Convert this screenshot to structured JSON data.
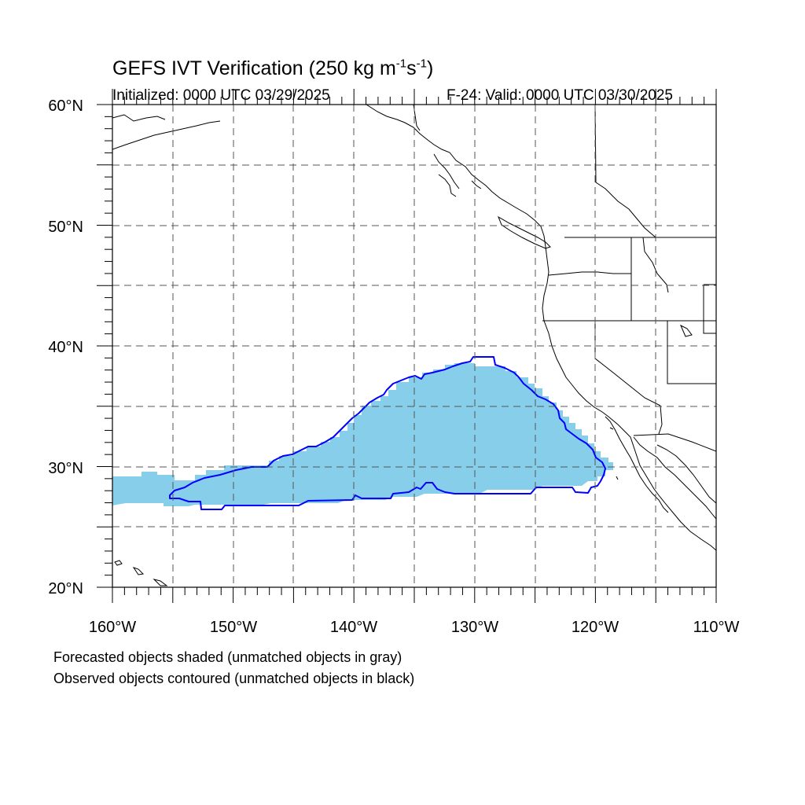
{
  "title": {
    "main": "GEFS IVT Verification (250 kg m",
    "exp1": "-1",
    "mid": "s",
    "exp2": "-1",
    "end": ")"
  },
  "subtitle": {
    "initialized": "Initialized: 0000 UTC 03/29/2025",
    "valid": "F-24: Valid: 0000 UTC 03/30/2025"
  },
  "axes": {
    "lat_labels": [
      "20°N",
      "30°N",
      "40°N",
      "50°N",
      "60°N"
    ],
    "lon_labels": [
      "160°W",
      "150°W",
      "140°W",
      "130°W",
      "120°W",
      "110°W"
    ],
    "lat_range": [
      20,
      60
    ],
    "lon_range": [
      -160,
      -110
    ],
    "grid": "dashed every 5 degrees"
  },
  "legend": {
    "line1": "Forecasted objects shaded (unmatched objects in gray)",
    "line2": "Observed objects contoured (unmatched objects in black)"
  },
  "colors": {
    "forecast_fill": "#87CEEB",
    "observed_contour": "#0000FF",
    "coastline": "#000000",
    "grid": "#555555"
  }
}
